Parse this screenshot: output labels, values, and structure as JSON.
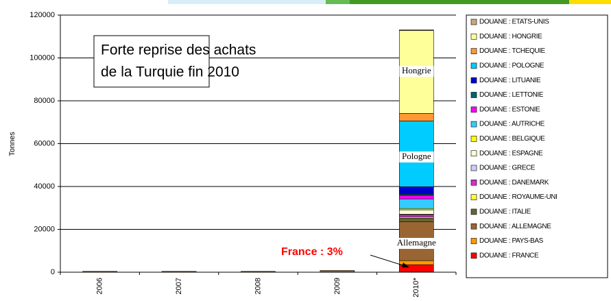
{
  "chart_data": {
    "type": "stacked_bar",
    "y_label": "Tonnes",
    "categories": [
      "2006",
      "2007",
      "2008",
      "2009",
      "2010*"
    ],
    "series": [
      {
        "name": "DOUANE : ETATS-UNIS",
        "color": "#c9a77c",
        "values": [
          null,
          null,
          null,
          null,
          300
        ]
      },
      {
        "name": "DOUANE : HONGRIE",
        "color": "#ffff99",
        "values": [
          null,
          null,
          null,
          null,
          38700
        ]
      },
      {
        "name": "DOUANE : TCHEQUIE",
        "color": "#ff9933",
        "values": [
          null,
          null,
          null,
          null,
          3500
        ]
      },
      {
        "name": "DOUANE : POLOGNE",
        "color": "#00ccff",
        "values": [
          null,
          null,
          null,
          null,
          30700
        ]
      },
      {
        "name": "DOUANE : LITUANIE",
        "color": "#0000cc",
        "values": [
          null,
          null,
          null,
          null,
          3500
        ]
      },
      {
        "name": "DOUANE : LETTONIE",
        "color": "#006666",
        "values": [
          null,
          null,
          null,
          null,
          600
        ]
      },
      {
        "name": "DOUANE : ESTONIE",
        "color": "#ff00ff",
        "values": [
          null,
          null,
          null,
          null,
          1600
        ]
      },
      {
        "name": "DOUANE : AUTRICHE",
        "color": "#33ccff",
        "values": [
          null,
          null,
          null,
          null,
          4500
        ]
      },
      {
        "name": "DOUANE : BELGIQUE",
        "color": "#ffff00",
        "values": [
          null,
          null,
          null,
          null,
          600
        ]
      },
      {
        "name": "DOUANE : ESPAGNE",
        "color": "#ffffcc",
        "values": [
          null,
          null,
          null,
          null,
          2000
        ]
      },
      {
        "name": "DOUANE : GRECE",
        "color": "#ccccff",
        "values": [
          null,
          null,
          null,
          null,
          300
        ]
      },
      {
        "name": "DOUANE : DANEMARK",
        "color": "#cc33cc",
        "values": [
          null,
          null,
          null,
          null,
          1000
        ]
      },
      {
        "name": "DOUANE : ROYAUME-UNI",
        "color": "#ffff33",
        "values": [
          null,
          null,
          null,
          null,
          600
        ]
      },
      {
        "name": "DOUANE : ITALIE",
        "color": "#666633",
        "values": [
          null,
          null,
          null,
          null,
          1600
        ]
      },
      {
        "name": "DOUANE : ALLEMAGNE",
        "color": "#996633",
        "values": [
          400,
          400,
          400,
          800,
          18200
        ]
      },
      {
        "name": "DOUANE : PAYS-BAS",
        "color": "#ff9900",
        "values": [
          null,
          null,
          null,
          null,
          1900
        ]
      },
      {
        "name": "DOUANE : FRANCE",
        "color": "#ff0000",
        "values": [
          null,
          null,
          null,
          null,
          3500
        ]
      }
    ],
    "ylim": [
      0,
      120000
    ],
    "yticks": [
      0,
      20000,
      40000,
      60000,
      80000,
      100000,
      120000
    ],
    "grid": true,
    "annotations": [
      "Forte reprise des achats",
      "de la Turquie fin 2010",
      "Hongrie",
      "Pologne",
      "Allemagne",
      "France : 3%"
    ]
  }
}
